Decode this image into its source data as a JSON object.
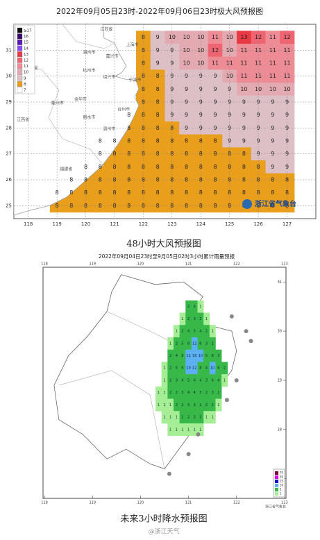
{
  "wind_map": {
    "title": "2022年09月05日23时-2022年09月06日23时极大风预报图",
    "xlim": [
      117.5,
      128
    ],
    "ylim": [
      24.5,
      32
    ],
    "xticks": [
      118,
      119,
      120,
      121,
      122,
      123,
      124,
      125,
      126,
      127
    ],
    "yticks": [
      25,
      26,
      27,
      28,
      29,
      30,
      31
    ],
    "legend": [
      {
        "value": 17,
        "label": "≥17",
        "color": "#111111"
      },
      {
        "value": 16,
        "label": "16",
        "color": "#3a0a6a"
      },
      {
        "value": 15,
        "label": "15",
        "color": "#5a1ab0"
      },
      {
        "value": 14,
        "label": "14",
        "color": "#8a4af0"
      },
      {
        "value": 13,
        "label": "13",
        "color": "#e83a44"
      },
      {
        "value": 12,
        "label": "12",
        "color": "#ee6470"
      },
      {
        "value": 11,
        "label": "11",
        "color": "#ee8c96"
      },
      {
        "value": 10,
        "label": "10",
        "color": "#e4aab2"
      },
      {
        "value": 9,
        "label": "9",
        "color": "#dcc0c6"
      },
      {
        "value": 8,
        "label": "8",
        "color": "#e99e1c"
      },
      {
        "value": 7,
        "label": "7",
        "color": "#ffffff"
      }
    ],
    "grid": {
      "lon_start": 119,
      "lat_start": 31.5,
      "step": 0.5,
      "rows": [
        [
          null,
          null,
          null,
          null,
          null,
          null,
          8,
          9,
          10,
          10,
          10,
          11,
          10,
          13,
          12,
          11,
          12
        ],
        [
          null,
          null,
          null,
          null,
          null,
          null,
          8,
          9,
          9,
          10,
          10,
          12,
          10,
          11,
          11,
          11,
          11
        ],
        [
          null,
          null,
          null,
          null,
          null,
          null,
          8,
          9,
          9,
          10,
          10,
          11,
          11,
          11,
          11,
          11,
          11
        ],
        [
          null,
          null,
          null,
          null,
          null,
          null,
          8,
          8,
          9,
          9,
          9,
          9,
          10,
          11,
          11,
          11,
          11
        ],
        [
          null,
          null,
          null,
          null,
          null,
          null,
          8,
          8,
          9,
          9,
          9,
          9,
          9,
          10,
          10,
          10,
          10
        ],
        [
          null,
          null,
          null,
          null,
          null,
          null,
          8,
          8,
          9,
          9,
          9,
          9,
          9,
          9,
          9,
          9,
          9
        ],
        [
          null,
          null,
          null,
          null,
          null,
          8,
          8,
          8,
          9,
          9,
          9,
          9,
          9,
          9,
          9,
          9,
          9
        ],
        [
          null,
          null,
          null,
          null,
          null,
          8,
          8,
          8,
          8,
          9,
          9,
          9,
          9,
          9,
          9,
          9,
          9
        ],
        [
          null,
          null,
          null,
          8,
          8,
          8,
          8,
          8,
          8,
          8,
          8,
          8,
          9,
          9,
          9,
          9,
          9
        ],
        [
          null,
          null,
          null,
          8,
          8,
          8,
          8,
          8,
          8,
          8,
          8,
          8,
          8,
          8,
          9,
          9,
          9
        ],
        [
          null,
          null,
          8,
          8,
          8,
          8,
          8,
          8,
          8,
          8,
          8,
          8,
          8,
          8,
          8,
          9,
          9
        ],
        [
          null,
          8,
          8,
          8,
          8,
          8,
          8,
          8,
          8,
          8,
          8,
          8,
          8,
          8,
          8,
          8,
          8
        ],
        [
          8,
          8,
          8,
          8,
          8,
          8,
          8,
          8,
          8,
          8,
          8,
          8,
          8,
          8,
          8,
          8,
          8
        ],
        [
          8,
          8,
          8,
          8,
          8,
          8,
          8,
          8,
          8,
          8,
          8,
          8,
          8,
          8,
          8,
          8,
          8
        ]
      ]
    },
    "places": [
      {
        "name": "江苏省",
        "lon": 120.5,
        "lat": 31.8
      },
      {
        "name": "上海市",
        "lon": 121.4,
        "lat": 31.2
      },
      {
        "name": "湖州市",
        "lon": 119.9,
        "lat": 30.9
      },
      {
        "name": "嘉兴市",
        "lon": 120.7,
        "lat": 30.75
      },
      {
        "name": "安徽省",
        "lon": 117.9,
        "lat": 30.3
      },
      {
        "name": "杭州市",
        "lon": 119.9,
        "lat": 30.2
      },
      {
        "name": "绍兴市",
        "lon": 120.6,
        "lat": 29.95
      },
      {
        "name": "宁波市",
        "lon": 121.5,
        "lat": 29.85
      },
      {
        "name": "衢州市",
        "lon": 118.8,
        "lat": 28.95
      },
      {
        "name": "金华市",
        "lon": 119.6,
        "lat": 29.1
      },
      {
        "name": "台州市",
        "lon": 121.1,
        "lat": 28.7
      },
      {
        "name": "江西省",
        "lon": 117.6,
        "lat": 28.3
      },
      {
        "name": "丽水市",
        "lon": 119.9,
        "lat": 28.4
      },
      {
        "name": "温州市",
        "lon": 120.6,
        "lat": 27.95
      },
      {
        "name": "福建省",
        "lon": 119.1,
        "lat": 26.4
      }
    ],
    "logo": "浙江省气象台"
  },
  "wind_caption": "48小时大风预报图",
  "rain_map": {
    "title": "2022年09月04日23时至9月05日02时3小时累计雨量预报",
    "xlim": [
      117.97,
      123.03
    ],
    "ylim": [
      26.6,
      31.3
    ],
    "xticks": [
      118,
      119,
      120,
      121,
      122,
      123
    ],
    "yticks": [
      27,
      28,
      29,
      30,
      31
    ],
    "legend": [
      {
        "value": 70,
        "color": "#7a0040"
      },
      {
        "value": 50,
        "color": "#e000e0"
      },
      {
        "value": 25,
        "color": "#1010d0"
      },
      {
        "value": 10,
        "color": "#5ab0f0"
      },
      {
        "value": 2,
        "color": "#38b848"
      },
      {
        "value": 1,
        "color": "#a6ee96"
      }
    ],
    "grid": {
      "lon_start": 120.25,
      "lat_start": 30.5,
      "lon_step": 0.125,
      "lat_step": 0.25,
      "rows": [
        [
          null,
          null,
          null,
          null,
          null,
          null,
          2,
          2,
          1,
          null,
          null,
          null,
          null
        ],
        [
          null,
          null,
          null,
          null,
          null,
          1,
          2,
          3,
          2,
          1,
          null,
          null,
          null
        ],
        [
          null,
          null,
          null,
          null,
          1,
          2,
          4,
          5,
          4,
          2,
          1,
          null,
          null
        ],
        [
          null,
          null,
          null,
          1,
          2,
          5,
          8,
          12,
          6,
          3,
          2,
          null,
          null
        ],
        [
          null,
          null,
          null,
          2,
          4,
          8,
          12,
          16,
          10,
          5,
          8,
          3,
          null
        ],
        [
          null,
          null,
          1,
          2,
          5,
          6,
          10,
          12,
          8,
          4,
          10,
          6,
          2
        ],
        [
          null,
          null,
          1,
          2,
          3,
          4,
          5,
          6,
          4,
          3,
          6,
          4,
          1
        ],
        [
          null,
          1,
          1,
          2,
          2,
          3,
          4,
          4,
          3,
          2,
          3,
          2,
          null
        ],
        [
          null,
          1,
          1,
          1,
          2,
          2,
          3,
          3,
          2,
          2,
          2,
          1,
          null
        ],
        [
          null,
          null,
          1,
          1,
          1,
          2,
          2,
          2,
          2,
          1,
          1,
          null,
          null
        ],
        [
          null,
          null,
          null,
          1,
          1,
          1,
          1,
          1,
          1,
          null,
          null,
          null,
          null
        ]
      ]
    },
    "footer_right": "浙江省气象台"
  },
  "rain_caption": "未来3小时降水预报图",
  "watermark": "@浙江天气"
}
